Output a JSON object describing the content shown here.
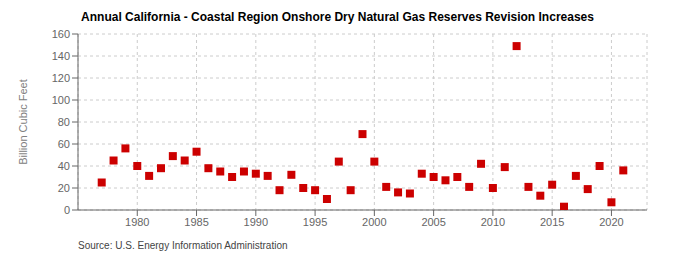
{
  "chart_data": {
    "type": "scatter",
    "title": "Annual California - Coastal Region Onshore Dry Natural Gas Reserves Revision Increases",
    "ylabel": "Billion Cubic Feet",
    "source": "Source: U.S. Energy Information Administration",
    "x": [
      1977,
      1978,
      1979,
      1980,
      1981,
      1982,
      1983,
      1984,
      1985,
      1986,
      1987,
      1988,
      1989,
      1990,
      1991,
      1992,
      1993,
      1994,
      1995,
      1996,
      1997,
      1998,
      1999,
      2000,
      2001,
      2002,
      2003,
      2004,
      2005,
      2006,
      2007,
      2008,
      2009,
      2010,
      2011,
      2012,
      2013,
      2014,
      2015,
      2016,
      2017,
      2018,
      2019,
      2020,
      2021
    ],
    "values": [
      25,
      45,
      56,
      40,
      31,
      38,
      49,
      45,
      53,
      38,
      35,
      30,
      35,
      33,
      31,
      18,
      32,
      20,
      18,
      10,
      44,
      18,
      69,
      44,
      21,
      16,
      15,
      33,
      30,
      27,
      30,
      21,
      42,
      20,
      39,
      149,
      21,
      13,
      23,
      3,
      31,
      19,
      40,
      7,
      36
    ],
    "color": "#cc0000",
    "marker": "square",
    "xlim": [
      1975,
      2023
    ],
    "ylim": [
      0,
      160
    ],
    "xticks": [
      1980,
      1985,
      1990,
      1995,
      2000,
      2005,
      2010,
      2015,
      2020
    ],
    "yticks": [
      0,
      20,
      40,
      60,
      80,
      100,
      120,
      140,
      160
    ],
    "grid": true
  }
}
